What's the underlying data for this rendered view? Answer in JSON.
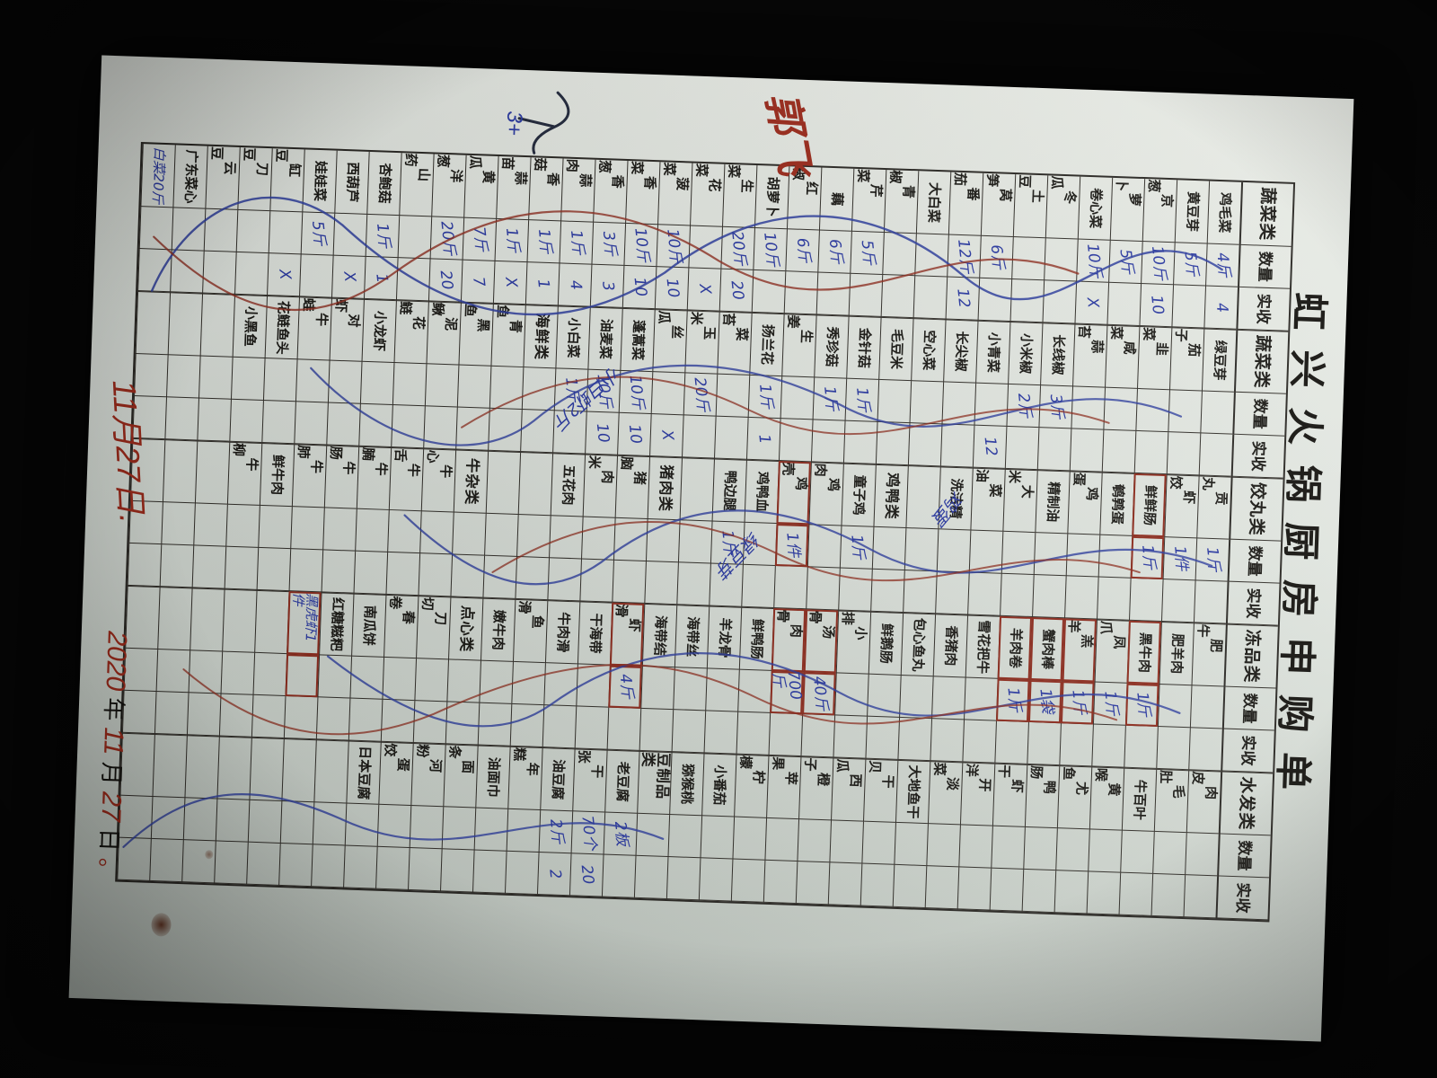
{
  "title": "虹兴火锅厨房申购单",
  "table": {
    "qty_header": "数量",
    "recv_header": "实收",
    "groups": [
      {
        "category": "蔬菜类",
        "rows": [
          [
            "鸡毛菜",
            "4斤",
            "4",
            ""
          ],
          [
            "黄豆芽",
            "5斤",
            "",
            ""
          ],
          [
            "京葱",
            "10斤",
            "10",
            ""
          ],
          [
            "萝卜",
            "5斤",
            "",
            ""
          ],
          [
            "卷心菜",
            "10斤",
            "X",
            ""
          ],
          [
            "冬瓜",
            "",
            "",
            ""
          ],
          [
            "土豆",
            "",
            "",
            ""
          ],
          [
            "莴笋",
            "6斤",
            "",
            ""
          ],
          [
            "番茄",
            "12斤",
            "12",
            ""
          ],
          [
            "大白菜",
            "",
            "",
            ""
          ],
          [
            "青椒",
            "",
            "",
            ""
          ],
          [
            "芹菜",
            "5斤",
            "",
            ""
          ],
          [
            "藕",
            "6斤",
            "",
            ""
          ],
          [
            "红椒",
            "6斤",
            "",
            ""
          ],
          [
            "胡萝卜",
            "10斤",
            "",
            ""
          ],
          [
            "生菜",
            "20斤",
            "20",
            ""
          ],
          [
            "花菜",
            "",
            "X",
            ""
          ],
          [
            "菠菜",
            "10斤",
            "10",
            ""
          ],
          [
            "香菜",
            "10斤",
            "10",
            ""
          ],
          [
            "香葱",
            "3斤",
            "3",
            ""
          ],
          [
            "蒜肉",
            "1斤",
            "4",
            ""
          ],
          [
            "香菇",
            "1斤",
            "1",
            ""
          ],
          [
            "蒜苗",
            "1斤",
            "X",
            ""
          ],
          [
            "黄瓜",
            "7斤",
            "7",
            ""
          ],
          [
            "洋葱",
            "20斤",
            "20",
            ""
          ],
          [
            "山药",
            "",
            "",
            ""
          ],
          [
            "杏鲍菇",
            "1斤",
            "1",
            ""
          ],
          [
            "西葫芦",
            "",
            "X",
            ""
          ],
          [
            "娃娃菜",
            "5斤",
            "",
            ""
          ],
          [
            "缸豆",
            "",
            "X",
            ""
          ],
          [
            "刀豆",
            "",
            "",
            ""
          ],
          [
            "云豆",
            "",
            "",
            ""
          ],
          [
            "广东菜心",
            "",
            "",
            ""
          ],
          [
            "白菜20斤",
            "",
            "",
            "hand"
          ]
        ]
      },
      {
        "category": "蔬菜类",
        "rows": [
          [
            "绿豆芽",
            "",
            "",
            ""
          ],
          [
            "茄子",
            "",
            "",
            ""
          ],
          [
            "韭菜",
            "",
            "",
            ""
          ],
          [
            "咸菜",
            "",
            "",
            ""
          ],
          [
            "蒜苔",
            "",
            "",
            ""
          ],
          [
            "长线椒",
            "3斤",
            "",
            ""
          ],
          [
            "小米椒",
            "2斤",
            "",
            ""
          ],
          [
            "小青菜",
            "",
            "12",
            ""
          ],
          [
            "长尖椒",
            "",
            "",
            ""
          ],
          [
            "空心菜",
            "",
            "",
            ""
          ],
          [
            "毛豆米",
            "",
            "",
            ""
          ],
          [
            "金针菇",
            "1斤",
            "",
            ""
          ],
          [
            "秀珍菇",
            "1斤",
            "",
            ""
          ],
          [
            "生姜",
            "",
            "",
            ""
          ],
          [
            "扬兰花",
            "1斤",
            "1",
            ""
          ],
          [
            "菜苔",
            "",
            "",
            ""
          ],
          [
            "玉米",
            "20斤",
            "",
            ""
          ],
          [
            "丝瓜",
            "",
            "X",
            ""
          ],
          [
            "蓬蒿菜",
            "10斤",
            "10",
            ""
          ],
          [
            "油麦菜",
            "10斤",
            "10",
            ""
          ],
          [
            "小白菜",
            "1斤",
            "",
            ""
          ],
          [
            "海鲜类",
            "",
            "",
            "sub"
          ],
          [
            "青鱼",
            "",
            "",
            ""
          ],
          [
            "黑鱼",
            "",
            "",
            ""
          ],
          [
            "泥鳅",
            "",
            "",
            ""
          ],
          [
            "花鲢",
            "",
            "",
            ""
          ],
          [
            "小龙虾",
            "",
            "",
            ""
          ],
          [
            "对虾",
            "",
            "",
            ""
          ],
          [
            "牛蛙",
            "",
            "",
            ""
          ],
          [
            "花鲢鱼头",
            "",
            "",
            ""
          ],
          [
            "小黑鱼",
            "",
            "",
            ""
          ],
          [
            "",
            "",
            "",
            ""
          ],
          [
            "",
            "",
            "",
            ""
          ],
          [
            "",
            "",
            "",
            ""
          ]
        ]
      },
      {
        "category": "饺丸类",
        "rows": [
          [
            "贡丸",
            "1斤",
            "",
            ""
          ],
          [
            "虾饺",
            "1件",
            "",
            ""
          ],
          [
            "鲜鲜肠",
            "1斤",
            "",
            "box"
          ],
          [
            "鹌鹑蛋",
            "",
            "",
            ""
          ],
          [
            "鸡蛋",
            "",
            "",
            ""
          ],
          [
            "精制油",
            "",
            "",
            ""
          ],
          [
            "大米",
            "",
            "",
            ""
          ],
          [
            "菜油",
            "",
            "",
            ""
          ],
          [
            "洗洁精",
            "",
            "",
            ""
          ],
          [
            "",
            "",
            "",
            ""
          ],
          [
            "鸡鸭类",
            "",
            "",
            "sub"
          ],
          [
            "童子鸡",
            "1斤",
            "",
            ""
          ],
          [
            "鸡肉",
            "",
            "",
            ""
          ],
          [
            "鸡壳",
            "1件",
            "",
            "box"
          ],
          [
            "鸡鸭血",
            "",
            "",
            ""
          ],
          [
            "鸭边腿",
            "1斤",
            "",
            ""
          ],
          [
            "",
            "",
            "",
            ""
          ],
          [
            "猪肉类",
            "",
            "",
            "sub"
          ],
          [
            "猪脑",
            "",
            "",
            ""
          ],
          [
            "肉米",
            "",
            "",
            ""
          ],
          [
            "五花肉",
            "",
            "",
            ""
          ],
          [
            "",
            "",
            "",
            ""
          ],
          [
            "",
            "",
            "",
            ""
          ],
          [
            "牛杂类",
            "",
            "",
            "sub"
          ],
          [
            "牛心",
            "",
            "",
            ""
          ],
          [
            "牛舌",
            "",
            "",
            ""
          ],
          [
            "牛腩",
            "",
            "",
            ""
          ],
          [
            "牛肠",
            "",
            "",
            ""
          ],
          [
            "牛肺",
            "",
            "",
            ""
          ],
          [
            "鲜牛肉",
            "",
            "",
            ""
          ],
          [
            "牛柳",
            "",
            "",
            ""
          ],
          [
            "",
            "",
            "",
            ""
          ],
          [
            "",
            "",
            "",
            ""
          ],
          [
            "",
            "",
            "",
            ""
          ]
        ]
      },
      {
        "category": "冻品类",
        "rows": [
          [
            "肥牛",
            "",
            "",
            ""
          ],
          [
            "肥羊肉",
            "",
            "",
            ""
          ],
          [
            "黑牛肉",
            "1斤",
            "",
            "box"
          ],
          [
            "凤爪",
            "1斤",
            "",
            ""
          ],
          [
            "羔羊",
            "1斤",
            "",
            "box"
          ],
          [
            "蟹肉棒",
            "1袋",
            "",
            "box"
          ],
          [
            "羊肉卷",
            "1斤",
            "",
            "box"
          ],
          [
            "雪花把牛",
            "",
            "",
            ""
          ],
          [
            "香猪肉",
            "",
            "",
            ""
          ],
          [
            "包心鱼丸",
            "",
            "",
            ""
          ],
          [
            "鲜鹅肠",
            "",
            "",
            ""
          ],
          [
            "小排",
            "",
            "",
            ""
          ],
          [
            "汤骨",
            "40斤",
            "",
            "box"
          ],
          [
            "肉骨",
            "700斤",
            "",
            "box"
          ],
          [
            "鲜鸭肠",
            "",
            "",
            ""
          ],
          [
            "羊龙骨",
            "",
            "",
            ""
          ],
          [
            "海带丝",
            "",
            "",
            ""
          ],
          [
            "海带结",
            "",
            "",
            ""
          ],
          [
            "虾滑",
            "4斤",
            "",
            "box"
          ],
          [
            "干海带",
            "",
            "",
            ""
          ],
          [
            "牛肉滑",
            "",
            "",
            ""
          ],
          [
            "鱼滑",
            "",
            "",
            ""
          ],
          [
            "嫩牛肉",
            "",
            "",
            ""
          ],
          [
            "点心类",
            "",
            "",
            "sub"
          ],
          [
            "刀切",
            "",
            "",
            ""
          ],
          [
            "春卷",
            "",
            "",
            ""
          ],
          [
            "南瓜饼",
            "",
            "",
            ""
          ],
          [
            "红糖糍粑",
            "",
            "",
            ""
          ],
          [
            "黑虎虾1件",
            "",
            "",
            "hand box"
          ],
          [
            "",
            "",
            "",
            ""
          ],
          [
            "",
            "",
            "",
            ""
          ],
          [
            "",
            "",
            "",
            ""
          ],
          [
            "",
            "",
            "",
            ""
          ],
          [
            "",
            "",
            "",
            ""
          ]
        ]
      },
      {
        "category": "水发类",
        "rows": [
          [
            "肉皮",
            "",
            "",
            ""
          ],
          [
            "毛肚",
            "",
            "",
            ""
          ],
          [
            "牛百叶",
            "",
            "",
            ""
          ],
          [
            "黄喉",
            "",
            "",
            ""
          ],
          [
            "尤鱼",
            "",
            "",
            ""
          ],
          [
            "鸭肠",
            "",
            "",
            ""
          ],
          [
            "虾干",
            "",
            "",
            ""
          ],
          [
            "开洋",
            "",
            "",
            ""
          ],
          [
            "淡菜",
            "",
            "",
            ""
          ],
          [
            "大地鱼干",
            "",
            "",
            ""
          ],
          [
            "干贝",
            "",
            "",
            ""
          ],
          [
            "西瓜",
            "",
            "",
            ""
          ],
          [
            "橙子",
            "",
            "",
            ""
          ],
          [
            "苹果",
            "",
            "",
            ""
          ],
          [
            "柠檬",
            "",
            "",
            ""
          ],
          [
            "小番茄",
            "",
            "",
            ""
          ],
          [
            "猕猴桃",
            "",
            "",
            ""
          ],
          [
            "豆制品类",
            "",
            "",
            "sub"
          ],
          [
            "老豆腐",
            "2板",
            "",
            ""
          ],
          [
            "干张",
            "70个",
            "20",
            ""
          ],
          [
            "油豆腐",
            "2斤",
            "2",
            ""
          ],
          [
            "年糕",
            "",
            "",
            ""
          ],
          [
            "油面巾",
            "",
            "",
            ""
          ],
          [
            "面条",
            "",
            "",
            ""
          ],
          [
            "河粉",
            "",
            "",
            ""
          ],
          [
            "蛋饺",
            "",
            "",
            ""
          ],
          [
            "日本豆腐",
            "",
            "",
            ""
          ],
          [
            "",
            "",
            "",
            ""
          ],
          [
            "",
            "",
            "",
            ""
          ],
          [
            "",
            "",
            "",
            ""
          ],
          [
            "",
            "",
            "",
            ""
          ],
          [
            "",
            "",
            "",
            ""
          ],
          [
            "",
            "",
            "",
            ""
          ],
          [
            "",
            "",
            "",
            ""
          ]
        ]
      }
    ]
  },
  "annotations": {
    "signature": "郭飞",
    "scribble": "3+",
    "date_note": "11月27日.",
    "date_line": {
      "year": "2020",
      "year_label": "年",
      "month": "11",
      "month_label": "月",
      "day": "27",
      "day_label": "日",
      "dot": "。"
    },
    "seafood_add": "小白虾2斤",
    "egg_add": "鸡蛋",
    "bean_add": "绿豆芽"
  }
}
